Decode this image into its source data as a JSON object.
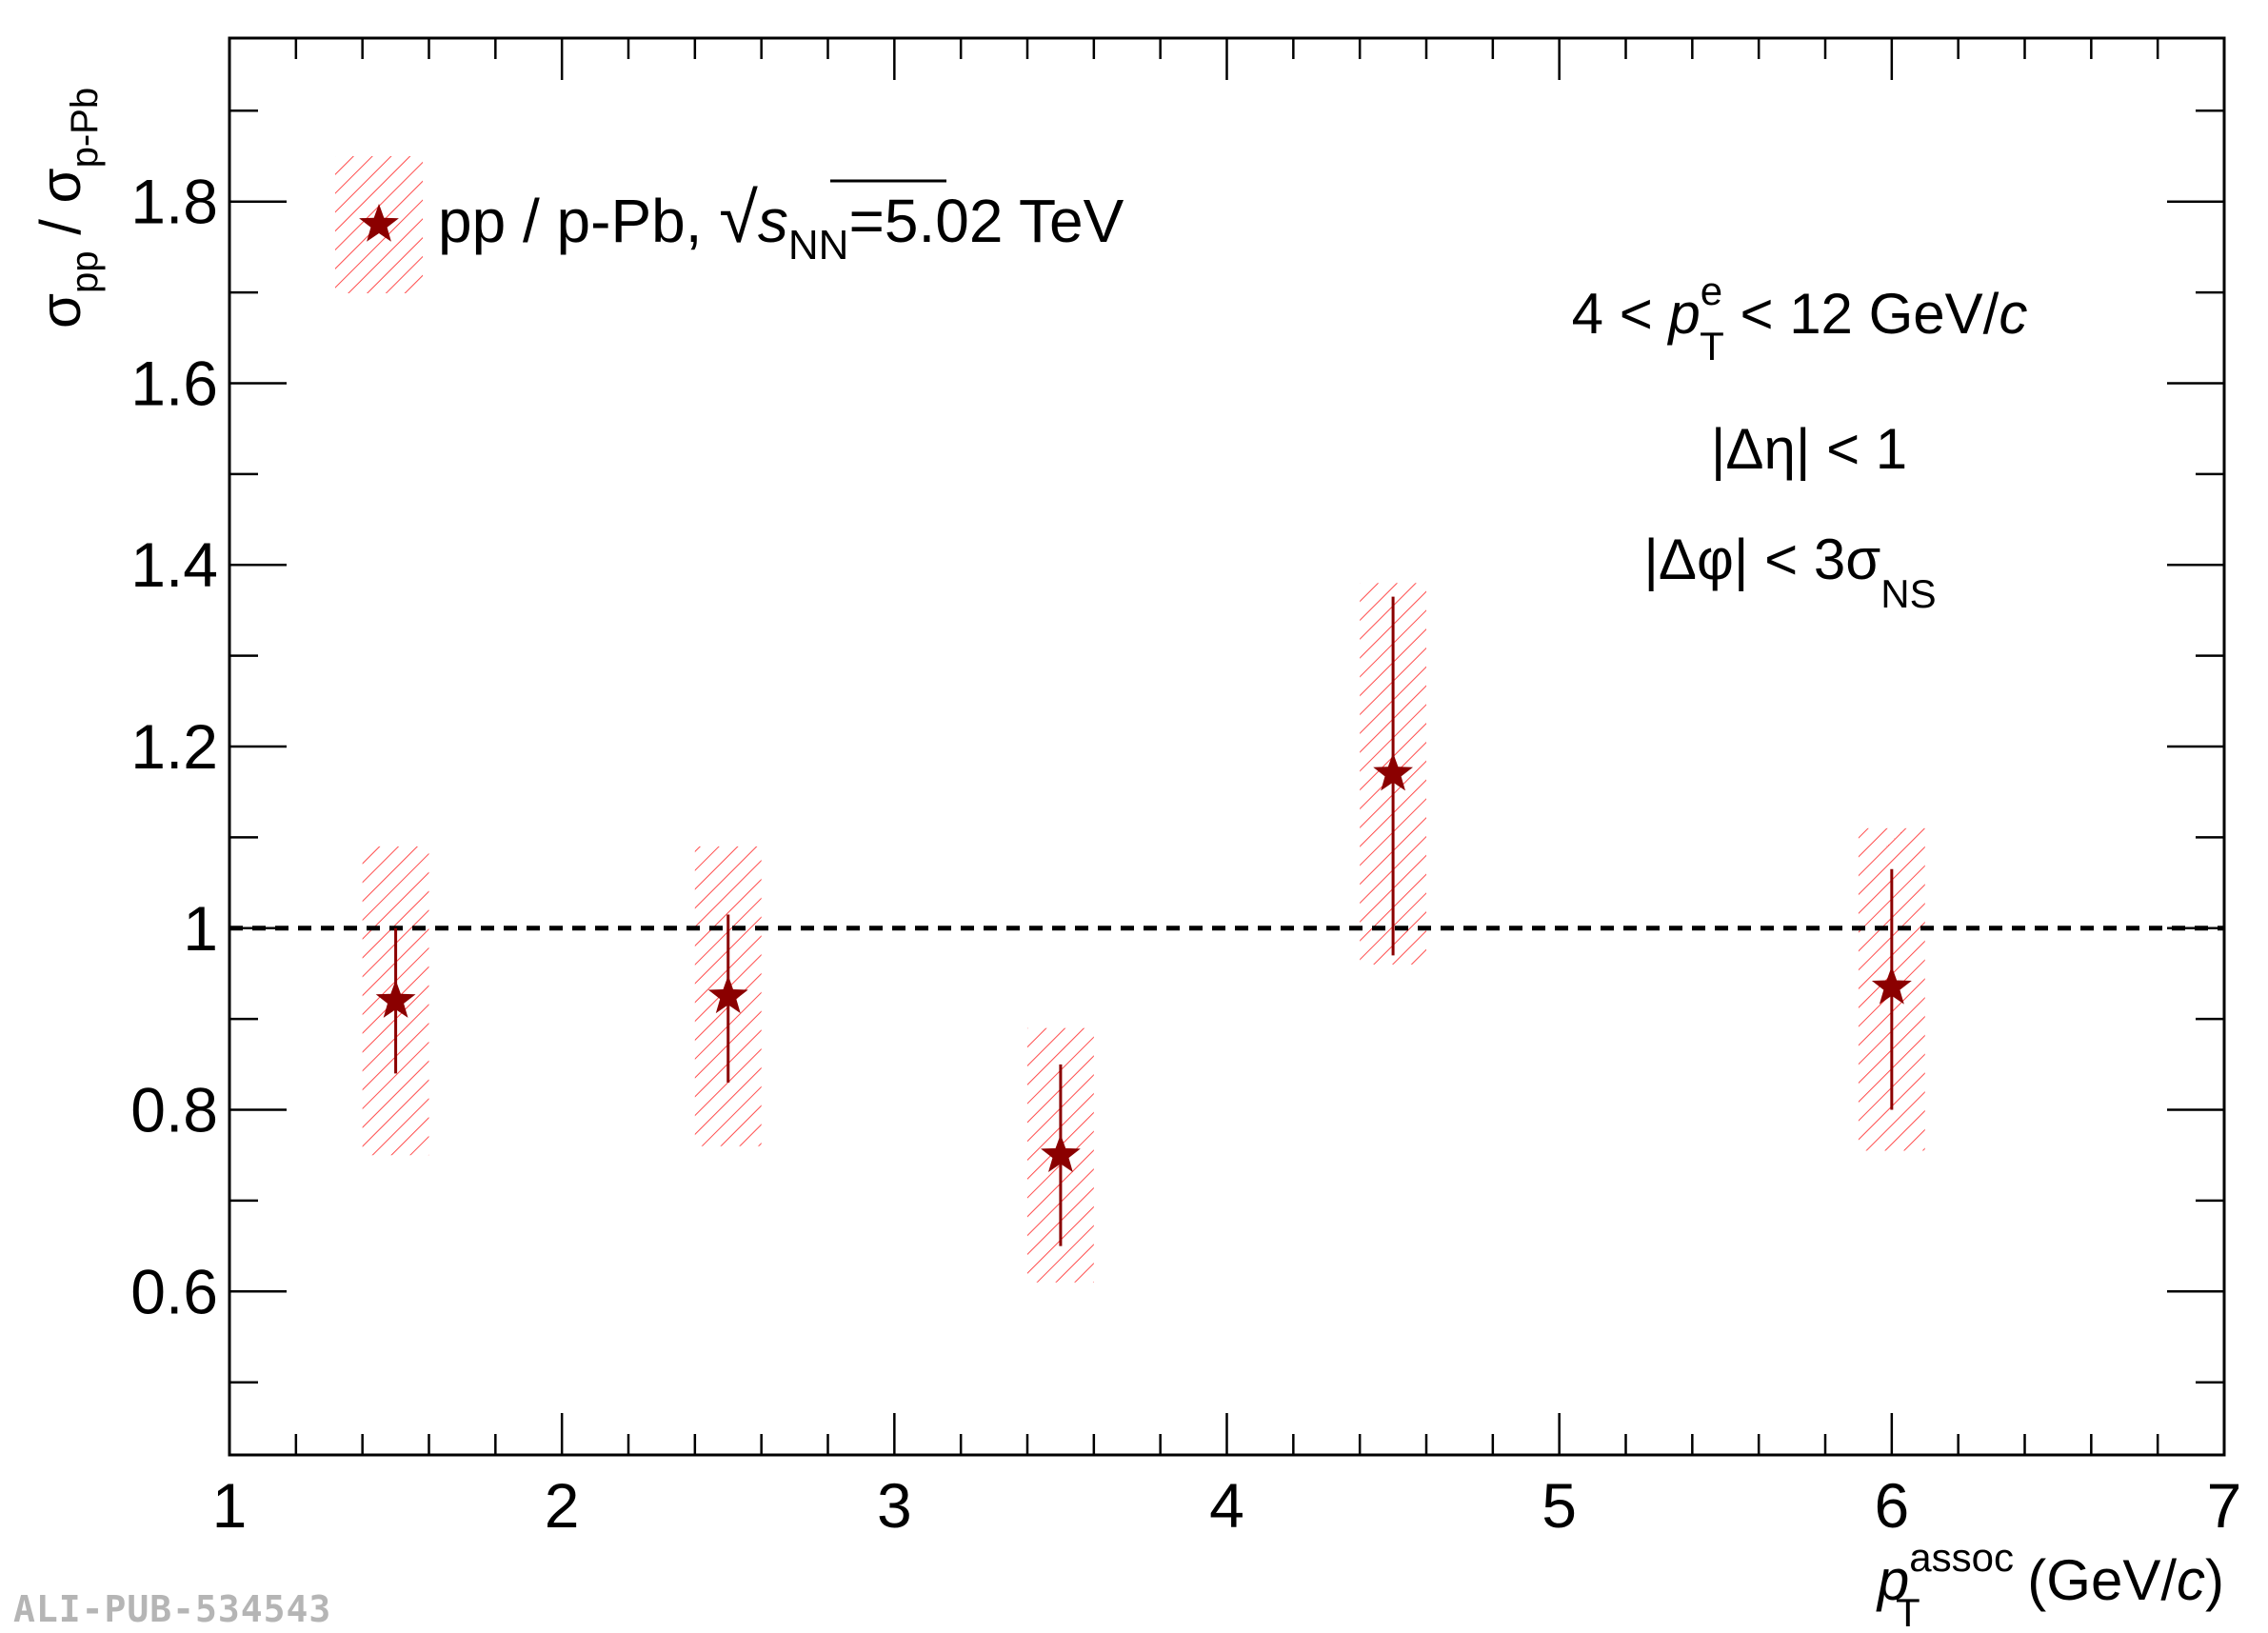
{
  "chart_data": {
    "type": "scatter",
    "title": "",
    "xlabel": {
      "main": "p",
      "sub": "T",
      "sup": "assoc",
      "unit_prefix": " (GeV/",
      "unit_italic": "c",
      "unit_suffix": ")"
    },
    "ylabel": {
      "sigma1": "σ",
      "sub1": "pp",
      "slash": " / ",
      "sigma2": "σ",
      "sub2": "p-Pb"
    },
    "xlim": [
      1,
      7
    ],
    "ylim": [
      0.42,
      1.98
    ],
    "x_ticks": [
      1,
      2,
      3,
      4,
      5,
      6,
      7
    ],
    "x_tick_labels": [
      "1",
      "2",
      "3",
      "4",
      "5",
      "6",
      "7"
    ],
    "y_ticks": [
      0.6,
      0.8,
      1.0,
      1.2,
      1.4,
      1.6,
      1.8
    ],
    "y_tick_labels": [
      "0.6",
      "0.8",
      "1",
      "1.2",
      "1.4",
      "1.6",
      "1.8"
    ],
    "reference_line": {
      "y": 1.0,
      "style": "dashed"
    },
    "grid": false,
    "legend_position": "top-left",
    "series": [
      {
        "name": "pp / p-Pb, √s_NN=5.02 TeV",
        "marker": "star",
        "color": "#8b0000",
        "syst_color": "#ff4d4d",
        "points": [
          {
            "x": 1.5,
            "y": 0.92,
            "stat_low": 0.84,
            "stat_high": 1.0,
            "syst_low": 0.75,
            "syst_high": 1.09,
            "syst_xw": 0.1
          },
          {
            "x": 2.5,
            "y": 0.925,
            "stat_low": 0.83,
            "stat_high": 1.015,
            "syst_low": 0.76,
            "syst_high": 1.09,
            "syst_xw": 0.1
          },
          {
            "x": 3.5,
            "y": 0.75,
            "stat_low": 0.65,
            "stat_high": 0.85,
            "syst_low": 0.61,
            "syst_high": 0.89,
            "syst_xw": 0.1
          },
          {
            "x": 4.5,
            "y": 1.17,
            "stat_low": 0.97,
            "stat_high": 1.365,
            "syst_low": 0.96,
            "syst_high": 1.38,
            "syst_xw": 0.1
          },
          {
            "x": 6.0,
            "y": 0.935,
            "stat_low": 0.8,
            "stat_high": 1.065,
            "syst_low": 0.755,
            "syst_high": 1.11,
            "syst_xw": 0.1
          }
        ]
      }
    ],
    "annotations": {
      "pt_range": {
        "pre": "4 < ",
        "p": "p",
        "sub": "T",
        "sup": "e",
        "post": " < 12 GeV/",
        "c": "c"
      },
      "eta": "|Δη| < 1",
      "phi": {
        "pre": "|Δφ| < 3σ",
        "sub": "NS"
      }
    },
    "legend": {
      "pre": "pp / p-Pb, ",
      "sqrt": "√",
      "s": "s",
      "sub": "NN",
      "post": "=5.02 TeV"
    }
  },
  "watermark": "ALI-PUB-534543",
  "colors": {
    "marker": "#8b0000",
    "syst_hatch": "#ff4d4d",
    "axis": "#000000",
    "watermark": "#b5b5b5"
  }
}
